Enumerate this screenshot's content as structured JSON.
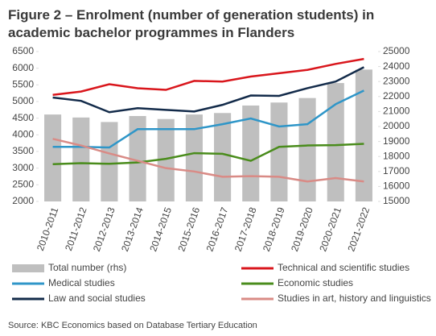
{
  "chart_data": {
    "type": "combo",
    "title": "Figure 2 – Enrolment (number of generation students) in academic bachelor programmes in Flanders",
    "source": "Source: KBC Economics based on Database Tertiary Education",
    "categories": [
      "2010-2011",
      "2011-2012",
      "2012-2013",
      "2013-2014",
      "2014-2015",
      "2015-2016",
      "2016-2017",
      "2017-2018",
      "2018-2019",
      "2019-2020",
      "2020-2021",
      "2021-2022"
    ],
    "ylim": [
      2000,
      6500
    ],
    "yticks": [
      2000,
      2500,
      3000,
      3500,
      4000,
      4500,
      5000,
      5500,
      6000,
      6500
    ],
    "y2lim": [
      15000,
      25000
    ],
    "y2ticks": [
      15000,
      16000,
      17000,
      18000,
      19000,
      20000,
      21000,
      22000,
      23000,
      24000,
      25000
    ],
    "series": [
      {
        "name": "Total number (rhs)",
        "type": "bar",
        "axis": "y2",
        "color": "#bfbfbf",
        "values": [
          20800,
          20600,
          20300,
          20700,
          20500,
          20800,
          20900,
          21400,
          21600,
          21900,
          22900,
          23800
        ]
      },
      {
        "name": "Technical and scientific studies",
        "type": "line",
        "color": "#d9161c",
        "values": [
          5200,
          5300,
          5520,
          5400,
          5350,
          5620,
          5600,
          5750,
          5850,
          5950,
          6130,
          6280
        ]
      },
      {
        "name": "Medical studies",
        "type": "line",
        "color": "#2f96c8",
        "values": [
          3640,
          3640,
          3620,
          4170,
          4170,
          4170,
          4320,
          4490,
          4250,
          4320,
          4920,
          5330
        ]
      },
      {
        "name": "Economic studies",
        "type": "line",
        "color": "#4a8c1c",
        "values": [
          3120,
          3150,
          3130,
          3170,
          3280,
          3450,
          3430,
          3220,
          3640,
          3680,
          3690,
          3730
        ]
      },
      {
        "name": "Law and social studies",
        "type": "line",
        "color": "#132b4a",
        "values": [
          5120,
          5020,
          4680,
          4800,
          4750,
          4700,
          4900,
          5180,
          5170,
          5400,
          5600,
          6030
        ]
      },
      {
        "name": "Studies in art, history and linguistics",
        "type": "line",
        "color": "#d98b86",
        "values": [
          3880,
          3680,
          3440,
          3220,
          3000,
          2900,
          2740,
          2760,
          2740,
          2600,
          2700,
          2600
        ]
      }
    ]
  }
}
